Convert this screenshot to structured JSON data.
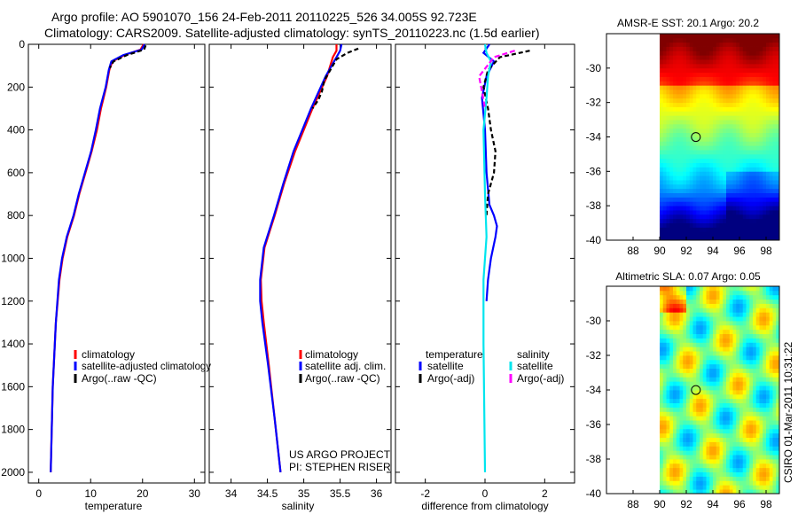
{
  "figure": {
    "title_line1": "Argo profile: AO 5901070_156 24-Feb-2011 20110225_526 34.005S 92.723E",
    "title_line2": "Climatology: CARS2009. Satellite-adjusted climatology: synTS_20110223.nc (1.5d earlier)",
    "side_stamp": "CSIRO 01-Mar-2011 10:31:22",
    "project_line1": "US ARGO PROJECT",
    "project_line2": "PI: STEPHEN RISER"
  },
  "colors": {
    "climatology": "#ff0000",
    "satellite": "#0000ff",
    "argo": "#000000",
    "salinity_satellite": "#00e5ee",
    "salinity_argo": "#ff00ff"
  },
  "chart_data": [
    {
      "type": "line",
      "name": "temperature-profile",
      "xlabel": "temperature",
      "ylabel": "",
      "xlim": [
        -2,
        32
      ],
      "ylim": [
        2050,
        0
      ],
      "xticks": [
        0,
        10,
        20,
        30
      ],
      "yticks": [
        0,
        200,
        400,
        600,
        800,
        1000,
        1200,
        1400,
        1600,
        1800,
        2000
      ],
      "legend": [
        "climatology",
        "satellite-adjusted climatology",
        "Argo(..raw -QC)"
      ],
      "series": [
        {
          "name": "climatology",
          "color": "#ff0000",
          "dash": "",
          "x": [
            20.2,
            19.6,
            16.5,
            14.2,
            13.6,
            13.0,
            12.0,
            11.2,
            10.2,
            9.0,
            7.8,
            6.8,
            5.5,
            4.6,
            4.0,
            3.3,
            2.7,
            2.3
          ],
          "y": [
            0,
            25,
            50,
            80,
            120,
            200,
            300,
            400,
            500,
            600,
            700,
            800,
            900,
            1000,
            1100,
            1300,
            1600,
            2000
          ]
        },
        {
          "name": "satellite-adjusted climatology",
          "color": "#0000ff",
          "dash": "",
          "x": [
            20.4,
            19.8,
            16.3,
            14.0,
            13.5,
            12.9,
            11.8,
            11.0,
            10.1,
            8.9,
            7.7,
            6.7,
            5.4,
            4.5,
            3.9,
            3.3,
            2.7,
            2.3
          ],
          "y": [
            0,
            25,
            50,
            80,
            120,
            200,
            300,
            400,
            500,
            600,
            700,
            800,
            900,
            1000,
            1100,
            1300,
            1600,
            2000
          ]
        },
        {
          "name": "Argo(..raw -QC)",
          "color": "#000000",
          "dash": "5,3",
          "x": [
            20.6,
            20.3,
            17.0,
            14.4,
            13.7
          ],
          "y": [
            5,
            25,
            50,
            80,
            110
          ]
        }
      ]
    },
    {
      "type": "line",
      "name": "salinity-profile",
      "xlabel": "salinity",
      "ylabel": "",
      "xlim": [
        33.7,
        36.2
      ],
      "ylim": [
        2050,
        0
      ],
      "xticks": [
        34,
        34.5,
        35,
        35.5,
        36
      ],
      "xticklabels": [
        "34",
        "34.5",
        "35",
        "35.5",
        "36"
      ],
      "legend": [
        "climatology",
        "satellite adj. clim.",
        "Argo(..raw -QC)"
      ],
      "series": [
        {
          "name": "climatology",
          "color": "#ff0000",
          "dash": "",
          "x": [
            35.45,
            35.45,
            35.4,
            35.32,
            35.12,
            35.0,
            34.88,
            34.73,
            34.6,
            34.46,
            34.41,
            34.42,
            34.45,
            34.52,
            34.6,
            34.68
          ],
          "y": [
            0,
            30,
            60,
            150,
            300,
            400,
            500,
            650,
            800,
            950,
            1100,
            1200,
            1300,
            1500,
            1750,
            2000
          ]
        },
        {
          "name": "satellite adj. clim.",
          "color": "#0000ff",
          "dash": "",
          "x": [
            35.52,
            35.5,
            35.45,
            35.3,
            35.1,
            34.98,
            34.86,
            34.72,
            34.59,
            34.45,
            34.4,
            34.4,
            34.43,
            34.51,
            34.6,
            34.68
          ],
          "y": [
            0,
            30,
            60,
            150,
            300,
            400,
            500,
            650,
            800,
            950,
            1100,
            1200,
            1300,
            1500,
            1750,
            2000
          ]
        },
        {
          "name": "Argo(..raw -QC)",
          "color": "#000000",
          "dash": "5,3",
          "x": [
            35.75,
            35.6,
            35.45,
            35.28,
            35.25,
            35.2,
            35.12
          ],
          "y": [
            20,
            40,
            70,
            170,
            220,
            260,
            300
          ]
        }
      ]
    },
    {
      "type": "line",
      "name": "difference-profile",
      "xlabel": "difference from climatology",
      "ylabel": "",
      "xlim": [
        -3,
        3
      ],
      "ylim": [
        2050,
        0
      ],
      "xticks": [
        -2,
        0,
        2
      ],
      "legend_headers": [
        "temperature",
        "salinity"
      ],
      "legend": [
        "satellite",
        "Argo(-adj)",
        "satellite",
        "Argo(-adj)"
      ],
      "series": [
        {
          "name": "temperature satellite",
          "color": "#0000ff",
          "dash": "",
          "x": [
            0.15,
            -0.05,
            0.3,
            0.05,
            -0.1,
            0.0,
            0.05,
            0.15,
            0.3,
            0.4,
            0.35,
            0.2,
            0.1,
            0.05
          ],
          "y": [
            0,
            40,
            80,
            150,
            250,
            400,
            600,
            750,
            800,
            850,
            900,
            1000,
            1100,
            1200
          ]
        },
        {
          "name": "temperature Argo(-adj)",
          "color": "#000000",
          "dash": "5,3",
          "x": [
            1.5,
            0.5,
            0.1,
            -0.05,
            0.1,
            0.2,
            0.35,
            0.3,
            0.1,
            0.05
          ],
          "y": [
            30,
            60,
            120,
            200,
            300,
            400,
            500,
            600,
            700,
            800
          ]
        },
        {
          "name": "salinity satellite",
          "color": "#00e5ee",
          "dash": "",
          "x": [
            0.0,
            0.05,
            0.2,
            0.1,
            0.05,
            -0.05,
            0.0,
            0.05,
            -0.05,
            -0.05,
            0.0
          ],
          "y": [
            0,
            40,
            80,
            150,
            250,
            400,
            700,
            900,
            1100,
            1400,
            2000
          ]
        },
        {
          "name": "salinity Argo(-adj)",
          "color": "#ff00ff",
          "dash": "6,3",
          "x": [
            1.0,
            0.3,
            -0.2,
            -0.1,
            0.0
          ],
          "y": [
            30,
            60,
            150,
            220,
            300
          ]
        }
      ]
    },
    {
      "type": "heatmap",
      "name": "sst-map",
      "title": "AMSR-E SST: 20.1 Argo: 20.2",
      "xlim": [
        86,
        99
      ],
      "ylim": [
        -40,
        -28
      ],
      "xticks": [
        88,
        90,
        92,
        94,
        96,
        98
      ],
      "yticks": [
        -30,
        -32,
        -34,
        -36,
        -38,
        -40
      ],
      "marker": {
        "lon": 92.723,
        "lat": -34.005
      },
      "land_lon_max": 90
    },
    {
      "type": "heatmap",
      "name": "sla-map",
      "title": "Altimetric SLA: 0.07 Argo: 0.05",
      "xlim": [
        86,
        99
      ],
      "ylim": [
        -40,
        -28
      ],
      "xticks": [
        88,
        90,
        92,
        94,
        96,
        98
      ],
      "yticks": [
        -30,
        -32,
        -34,
        -36,
        -38,
        -40
      ],
      "marker": {
        "lon": 92.723,
        "lat": -34.005
      },
      "land_lon_max": 90
    }
  ]
}
